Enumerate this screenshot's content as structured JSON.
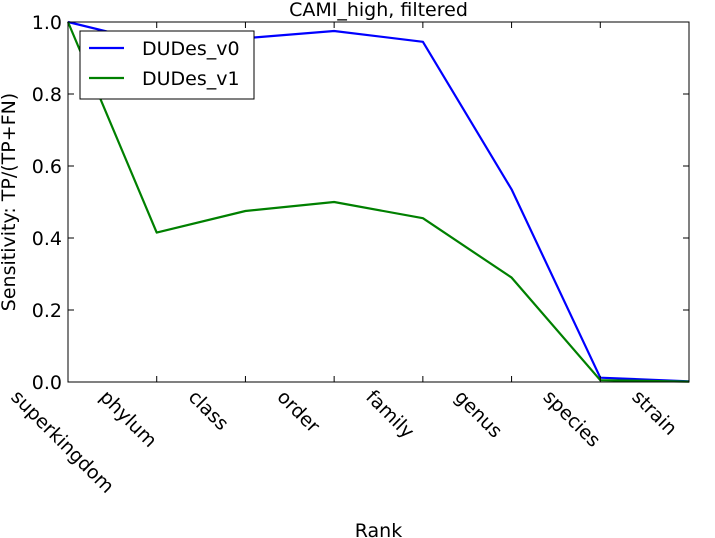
{
  "chart_data": {
    "type": "line",
    "title": "CAMI_high, filtered",
    "xlabel": "Rank",
    "ylabel": "Sensitivity: TP/(TP+FN)",
    "categories": [
      "superkingdom",
      "phylum",
      "class",
      "order",
      "family",
      "genus",
      "species",
      "strain"
    ],
    "ylim": [
      0,
      1
    ],
    "yticks": [
      "0.0",
      "0.2",
      "0.4",
      "0.6",
      "0.8",
      "1.0"
    ],
    "grid": false,
    "legend_position": "upper-left",
    "series": [
      {
        "name": "DUDes_v0",
        "color": "#0000ff",
        "values": [
          1.0,
          0.94,
          0.955,
          0.975,
          0.945,
          0.535,
          0.012,
          0.002
        ]
      },
      {
        "name": "DUDes_v1",
        "color": "#008000",
        "values": [
          1.0,
          0.415,
          0.475,
          0.5,
          0.455,
          0.29,
          0.005,
          0.001
        ]
      }
    ]
  }
}
